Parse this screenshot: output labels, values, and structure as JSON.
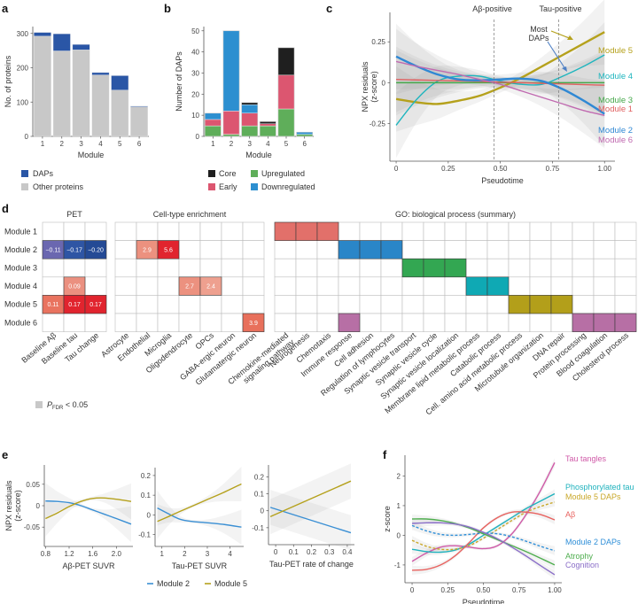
{
  "figure": {
    "panel_labels": [
      "a",
      "b",
      "c",
      "d",
      "e",
      "f"
    ]
  },
  "chart_data": [
    {
      "id": "a",
      "type": "bar",
      "stacked": true,
      "title": "",
      "xlabel": "Module",
      "ylabel": "No. of proteins",
      "ylim": [
        0,
        320
      ],
      "yticks": [
        0,
        100,
        200,
        300
      ],
      "categories": [
        "1",
        "2",
        "3",
        "4",
        "5",
        "6"
      ],
      "series": [
        {
          "name": "Other proteins",
          "color": "#c8c8c8",
          "values": [
            292,
            249,
            252,
            179,
            135,
            86
          ]
        },
        {
          "name": "DAPs",
          "color": "#2a56a6",
          "values": [
            11,
            50,
            16,
            7,
            42,
            2
          ]
        }
      ],
      "legend": [
        "DAPs",
        "Other proteins"
      ],
      "legend_position": "bottom"
    },
    {
      "id": "b",
      "type": "bar",
      "stacked": true,
      "xlabel": "Module",
      "ylabel": "Number of DAPs",
      "ylim": [
        0,
        52
      ],
      "yticks": [
        0,
        10,
        20,
        30,
        40,
        50
      ],
      "categories": [
        "1",
        "2",
        "3",
        "4",
        "5",
        "6"
      ],
      "series": [
        {
          "name": "Upregulated",
          "color": "#5fae5a",
          "values": [
            5,
            1,
            5,
            5,
            13,
            1
          ]
        },
        {
          "name": "Early",
          "color": "#dc5670",
          "values": [
            3,
            11,
            6,
            1,
            16,
            0
          ]
        },
        {
          "name": "Downregulated",
          "color": "#2d8fd0",
          "values": [
            3,
            38,
            4,
            0,
            0,
            1
          ]
        },
        {
          "name": "Core",
          "color": "#1f1f1f",
          "values": [
            0,
            0,
            1,
            1,
            13,
            0
          ]
        }
      ],
      "legend": [
        "Core",
        "Upregulated",
        "Early",
        "Downregulated"
      ],
      "legend_position": "bottom"
    },
    {
      "id": "c",
      "type": "line",
      "xlabel": "Pseudotime",
      "ylabel": "NPX residuals (z-score)",
      "xlim": [
        -0.03,
        1.05
      ],
      "ylim": [
        -0.48,
        0.43
      ],
      "xticks": [
        "0",
        "0.25",
        "0.50",
        "0.75",
        "1.00"
      ],
      "xtick_values": [
        0,
        0.25,
        0.5,
        0.75,
        1.0
      ],
      "yticks": [
        "-0.25",
        "0",
        "0.25"
      ],
      "ytick_values": [
        -0.25,
        0,
        0.25
      ],
      "vlines": [
        {
          "x": 0.47,
          "label": "Aβ-positive"
        },
        {
          "x": 0.78,
          "label": "Tau-positive"
        }
      ],
      "annotation": "Most DAPs",
      "x": [
        0,
        0.1,
        0.2,
        0.3,
        0.4,
        0.5,
        0.6,
        0.7,
        0.8,
        0.9,
        1.0
      ],
      "series": [
        {
          "name": "Module 5",
          "color": "#b5a11c",
          "values": [
            -0.1,
            -0.12,
            -0.13,
            -0.11,
            -0.08,
            -0.03,
            0.03,
            0.1,
            0.17,
            0.24,
            0.31
          ]
        },
        {
          "name": "Module 4",
          "color": "#1fb5be",
          "values": [
            -0.26,
            -0.1,
            0.01,
            0.04,
            0.04,
            0.01,
            -0.01,
            -0.01,
            0.04,
            0.1,
            0.17
          ]
        },
        {
          "name": "Module 3",
          "color": "#45a84a",
          "values": [
            0,
            0,
            0,
            0,
            0,
            0,
            0,
            0,
            0,
            0,
            0
          ]
        },
        {
          "name": "Module 1",
          "color": "#e06060",
          "values": [
            0.02,
            0.017,
            0.014,
            0.011,
            0.008,
            0.004,
            0,
            -0.004,
            -0.008,
            -0.012,
            -0.015
          ]
        },
        {
          "name": "Module 2",
          "color": "#2f88d4",
          "values": [
            0.16,
            0.1,
            0.05,
            0.02,
            0.015,
            0.02,
            0.025,
            0.01,
            -0.04,
            -0.11,
            -0.19
          ]
        },
        {
          "name": "Module 6",
          "color": "#c06ab0",
          "values": [
            0.13,
            0.1,
            0.075,
            0.05,
            0.02,
            -0.01,
            -0.05,
            -0.09,
            -0.13,
            -0.17,
            -0.2
          ]
        }
      ]
    },
    {
      "id": "d",
      "type": "heatmap",
      "rows": [
        "Module 1",
        "Module 2",
        "Module 3",
        "Module 4",
        "Module 5",
        "Module 6"
      ],
      "groups": [
        {
          "title": "PET",
          "columns": [
            "Baseline Aβ",
            "Baseline tau",
            "Tau change"
          ],
          "cells": [
            {
              "row": 1,
              "col": 0,
              "value": "−0.11",
              "color": "#6a67b0"
            },
            {
              "row": 1,
              "col": 1,
              "value": "−0.17",
              "color": "#2e55a4"
            },
            {
              "row": 1,
              "col": 2,
              "value": "−0.20",
              "color": "#244a95"
            },
            {
              "row": 3,
              "col": 1,
              "value": "0.09",
              "color": "#eb9080"
            },
            {
              "row": 4,
              "col": 0,
              "value": "0.11",
              "color": "#e9735f"
            },
            {
              "row": 4,
              "col": 1,
              "value": "0.17",
              "color": "#e1242e"
            },
            {
              "row": 4,
              "col": 2,
              "value": "0.17",
              "color": "#e1242e"
            }
          ]
        },
        {
          "title": "Cell-type enrichment",
          "columns": [
            "Astrocyte",
            "Endothelial",
            "Microglia",
            "Oligodendrocyte",
            "OPCs",
            "GABA-ergic neuron",
            "Glutamatergic neuron"
          ],
          "cells": [
            {
              "row": 1,
              "col": 1,
              "value": "2.9",
              "color": "#ec917f"
            },
            {
              "row": 1,
              "col": 2,
              "value": "5.6",
              "color": "#e1242e"
            },
            {
              "row": 3,
              "col": 3,
              "value": "2.7",
              "color": "#ec917f"
            },
            {
              "row": 3,
              "col": 4,
              "value": "2.4",
              "color": "#eea08f"
            },
            {
              "row": 5,
              "col": 6,
              "value": "3.9",
              "color": "#e8705c"
            }
          ]
        },
        {
          "title": "GO: biological process (summary)",
          "columns": [
            "Chemokine-mediated signaling pathway",
            "Neurogenesis",
            "Chemotaxis",
            "Immune response",
            "Cell adhesion",
            "Regulation of lymphocytes",
            "Synaptic vesicle transport",
            "Synaptic vesicle cycle",
            "Synaptic vesicle localization",
            "Membrane lipid metabolic process",
            "Catabolic process",
            "Cell. amino acid metabolic process",
            "Microtubule organization",
            "DNA repair",
            "Protein processing",
            "Blood coagulation",
            "Cholesterol process"
          ],
          "cells": [
            {
              "row": 0,
              "col": 0,
              "color": "#e2706a"
            },
            {
              "row": 0,
              "col": 1,
              "color": "#e2706a"
            },
            {
              "row": 0,
              "col": 2,
              "color": "#e2706a"
            },
            {
              "row": 1,
              "col": 3,
              "color": "#2a86c8"
            },
            {
              "row": 1,
              "col": 4,
              "color": "#2a86c8"
            },
            {
              "row": 1,
              "col": 5,
              "color": "#2a86c8"
            },
            {
              "row": 2,
              "col": 6,
              "color": "#33a752"
            },
            {
              "row": 2,
              "col": 7,
              "color": "#33a752"
            },
            {
              "row": 2,
              "col": 8,
              "color": "#33a752"
            },
            {
              "row": 3,
              "col": 9,
              "color": "#0fa9b4"
            },
            {
              "row": 3,
              "col": 10,
              "color": "#0fa9b4"
            },
            {
              "row": 4,
              "col": 11,
              "color": "#b39f1a"
            },
            {
              "row": 4,
              "col": 12,
              "color": "#b39f1a"
            },
            {
              "row": 4,
              "col": 13,
              "color": "#b39f1a"
            },
            {
              "row": 5,
              "col": 3,
              "color": "#b76fa5"
            },
            {
              "row": 5,
              "col": 14,
              "color": "#b76fa5"
            },
            {
              "row": 5,
              "col": 15,
              "color": "#b76fa5"
            },
            {
              "row": 5,
              "col": 16,
              "color": "#b76fa5"
            }
          ]
        }
      ],
      "legend": "P_FDR < 0.05",
      "legend_main": "P",
      "legend_sub": "FDR",
      "legend_rest": " < 0.05"
    },
    {
      "id": "e",
      "type": "line",
      "ylabel": "NPX residuals (z-score)",
      "legend": [
        "Module 2",
        "Module 5"
      ],
      "legend_position": "bottom",
      "subplots": [
        {
          "xlabel": "Aβ-PET SUVR",
          "xlim": [
            0.78,
            2.28
          ],
          "ylim": [
            -0.095,
            0.095
          ],
          "xticks": [
            "0.8",
            "1.2",
            "1.6",
            "2.0"
          ],
          "xtick_values": [
            0.8,
            1.2,
            1.6,
            2.0
          ],
          "yticks": [
            "-0.05",
            "0",
            "0.05"
          ],
          "ytick_values": [
            -0.05,
            0,
            0.05
          ],
          "x": [
            0.8,
            1.0,
            1.2,
            1.4,
            1.6,
            1.8,
            2.0,
            2.25
          ],
          "series": [
            {
              "name": "Module 2",
              "color": "#3a8fd4",
              "values": [
                0.011,
                0.01,
                0.007,
                0.0,
                -0.01,
                -0.02,
                -0.03,
                -0.043
              ]
            },
            {
              "name": "Module 5",
              "color": "#b5a11c",
              "values": [
                -0.03,
                -0.017,
                -0.002,
                0.01,
                0.017,
                0.018,
                0.015,
                0.01
              ]
            }
          ]
        },
        {
          "xlabel": "Tau-PET SUVR",
          "xlim": [
            0.7,
            4.6
          ],
          "ylim": [
            -0.16,
            0.24
          ],
          "xticks": [
            "1",
            "2",
            "3",
            "4"
          ],
          "xtick_values": [
            1,
            2,
            3,
            4
          ],
          "yticks": [
            "-0.1",
            "0",
            "0.1",
            "0.2"
          ],
          "ytick_values": [
            -0.1,
            0,
            0.1,
            0.2
          ],
          "x": [
            0.8,
            1.3,
            1.8,
            2.3,
            3.0,
            3.7,
            4.5
          ],
          "series": [
            {
              "name": "Module 2",
              "color": "#3a8fd4",
              "values": [
                0.035,
                0.005,
                -0.022,
                -0.033,
                -0.04,
                -0.048,
                -0.062
              ]
            },
            {
              "name": "Module 5",
              "color": "#b5a11c",
              "values": [
                -0.033,
                -0.008,
                0.018,
                0.043,
                0.078,
                0.113,
                0.157
              ]
            }
          ]
        },
        {
          "xlabel": "Tau-PET rate of change",
          "xlim": [
            -0.04,
            0.44
          ],
          "ylim": [
            -0.2,
            0.27
          ],
          "xticks": [
            "0",
            "0.1",
            "0.2",
            "0.3",
            "0.4"
          ],
          "xtick_values": [
            0,
            0.1,
            0.2,
            0.3,
            0.4
          ],
          "yticks": [
            "-0.1",
            "0",
            "0.1",
            "0.2"
          ],
          "ytick_values": [
            -0.1,
            0,
            0.1,
            0.2
          ],
          "x": [
            -0.03,
            0.42
          ],
          "series": [
            {
              "name": "Module 2",
              "color": "#3a8fd4",
              "values": [
                0.02,
                -0.13
              ]
            },
            {
              "name": "Module 5",
              "color": "#b5a11c",
              "values": [
                -0.035,
                0.175
              ]
            }
          ]
        }
      ]
    },
    {
      "id": "f",
      "type": "line",
      "xlabel": "Pseudotime",
      "ylabel": "z-score",
      "xlim": [
        -0.05,
        1.05
      ],
      "ylim": [
        -1.6,
        2.7
      ],
      "xticks": [
        "0",
        "0.25",
        "0.50",
        "0.75",
        "1.00"
      ],
      "xtick_values": [
        0,
        0.25,
        0.5,
        0.75,
        1.0
      ],
      "yticks": [
        "-1",
        "0",
        "1",
        "2"
      ],
      "ytick_values": [
        -1,
        0,
        1,
        2
      ],
      "x": [
        0,
        0.1,
        0.2,
        0.3,
        0.4,
        0.5,
        0.6,
        0.7,
        0.8,
        0.9,
        1.0
      ],
      "series": [
        {
          "name": "Tau tangles",
          "color": "#d05aa8",
          "dashed": false,
          "values": [
            -0.88,
            -0.6,
            -0.4,
            -0.35,
            -0.4,
            -0.45,
            -0.35,
            0.05,
            0.7,
            1.5,
            2.45
          ]
        },
        {
          "name": "Phosphorylated tau",
          "color": "#1fb2bd",
          "dashed": false,
          "values": [
            -0.47,
            -0.55,
            -0.57,
            -0.5,
            -0.3,
            0.0,
            0.3,
            0.6,
            0.9,
            1.15,
            1.4
          ]
        },
        {
          "name": "Module 5 DAPs",
          "color": "#c9a82a",
          "dashed": true,
          "values": [
            -0.17,
            -0.37,
            -0.47,
            -0.47,
            -0.35,
            -0.1,
            0.2,
            0.5,
            0.78,
            0.97,
            1.12
          ]
        },
        {
          "name": "Aβ",
          "color": "#e8625f",
          "dashed": false,
          "values": [
            -1.18,
            -1.15,
            -1.0,
            -0.7,
            -0.25,
            0.25,
            0.6,
            0.78,
            0.78,
            0.7,
            0.52
          ]
        },
        {
          "name": "Module 2 DAPs",
          "color": "#2f8fd8",
          "dashed": true,
          "values": [
            0.33,
            0.15,
            0.03,
            0.0,
            0.03,
            0.07,
            0.05,
            -0.05,
            -0.2,
            -0.37,
            -0.52
          ]
        },
        {
          "name": "Atrophy",
          "color": "#4fae4f",
          "dashed": false,
          "values": [
            0.55,
            0.55,
            0.5,
            0.4,
            0.25,
            0.05,
            -0.15,
            -0.35,
            -0.55,
            -0.77,
            -1.0
          ]
        },
        {
          "name": "Cognition",
          "color": "#8a6ec8",
          "dashed": false,
          "values": [
            0.4,
            0.42,
            0.42,
            0.38,
            0.28,
            0.1,
            -0.12,
            -0.4,
            -0.7,
            -1.02,
            -1.33
          ]
        }
      ]
    }
  ]
}
